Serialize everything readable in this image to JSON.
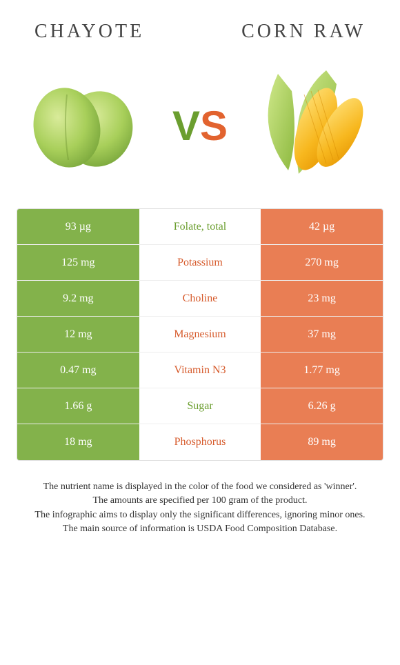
{
  "header": {
    "left_title": "CHAYOTE",
    "right_title": "CORN RAW"
  },
  "vs": {
    "v": "V",
    "s": "S"
  },
  "colors": {
    "left_bg": "#83b24b",
    "right_bg": "#e97e54",
    "left_text": "#6b9e2f",
    "right_text": "#d65a2b",
    "border": "#e0e0e0",
    "background": "#ffffff",
    "body_text": "#333333"
  },
  "typography": {
    "title_fontsize": 28,
    "title_letterspacing": 4,
    "vs_fontsize": 60,
    "row_fontsize": 16,
    "footer_fontsize": 14
  },
  "table": {
    "rows": [
      {
        "left": "93 µg",
        "label": "Folate, total",
        "right": "42 µg",
        "winner": "left"
      },
      {
        "left": "125 mg",
        "label": "Potassium",
        "right": "270 mg",
        "winner": "right"
      },
      {
        "left": "9.2 mg",
        "label": "Choline",
        "right": "23 mg",
        "winner": "right"
      },
      {
        "left": "12 mg",
        "label": "Magnesium",
        "right": "37 mg",
        "winner": "right"
      },
      {
        "left": "0.47 mg",
        "label": "Vitamin N3",
        "right": "1.77 mg",
        "winner": "right"
      },
      {
        "left": "1.66 g",
        "label": "Sugar",
        "right": "6.26 g",
        "winner": "left"
      },
      {
        "left": "18 mg",
        "label": "Phosphorus",
        "right": "89 mg",
        "winner": "right"
      }
    ]
  },
  "footer": {
    "line1": "The nutrient name is displayed in the color of the food we considered as 'winner'.",
    "line2": "The amounts are specified per 100 gram of the product.",
    "line3": "The infographic aims to display only the significant differences, ignoring minor ones.",
    "line4": "The main source of information is USDA Food Composition Database."
  }
}
